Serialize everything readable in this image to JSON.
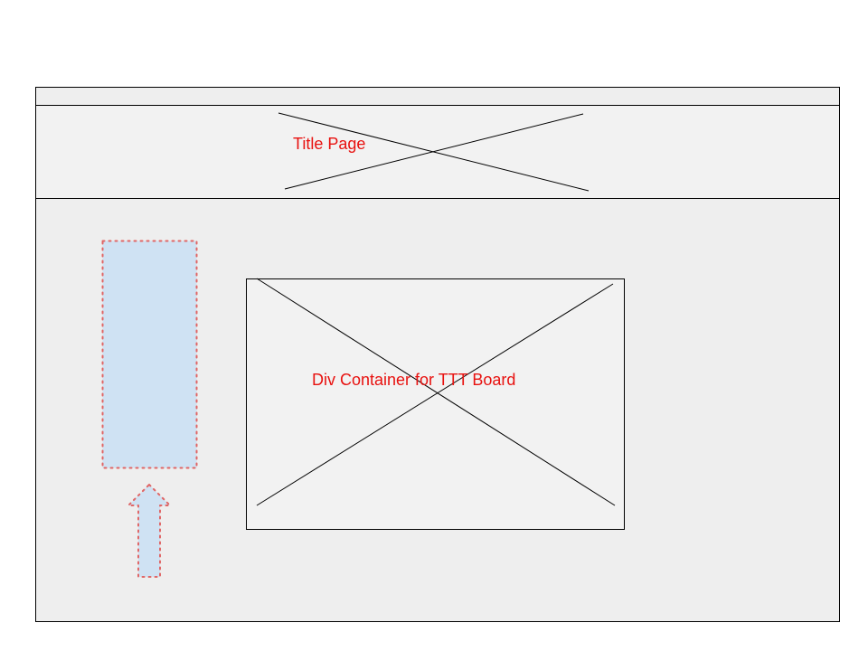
{
  "header": {
    "title_label": "Title Page"
  },
  "board": {
    "label": "Div Container for TTT Board"
  },
  "colors": {
    "annotation_text": "#e8110f",
    "sidebar_fill": "#cfe2f3",
    "sidebar_border": "#e06666",
    "frame_fill": "#eeeeee",
    "placeholder_fill": "#f2f2f2"
  }
}
